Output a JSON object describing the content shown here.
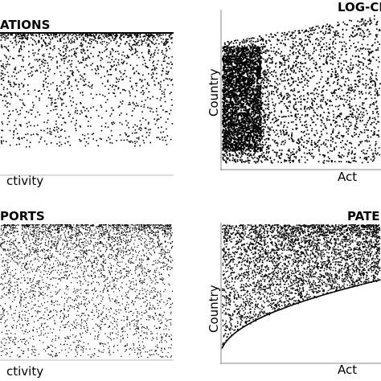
{
  "chart_data": [
    {
      "type": "scatter",
      "title": "ATIONS",
      "xlabel": "ctivity",
      "ylabel": "",
      "pattern": "sparse-descending-density",
      "dot_color": "#000000"
    },
    {
      "type": "scatter",
      "title": "LOG-CI",
      "xlabel": "Act",
      "ylabel": "Country",
      "pattern": "dense-block",
      "dot_color": "#000000"
    },
    {
      "type": "scatter",
      "title": "PORTS",
      "xlabel": "ctivity",
      "ylabel": "",
      "pattern": "gradient-top-dense",
      "dot_color": "#000000"
    },
    {
      "type": "scatter",
      "title": "PATE",
      "xlabel": "Act",
      "ylabel": "Country",
      "pattern": "curved-boundary",
      "dot_color": "#000000"
    }
  ]
}
